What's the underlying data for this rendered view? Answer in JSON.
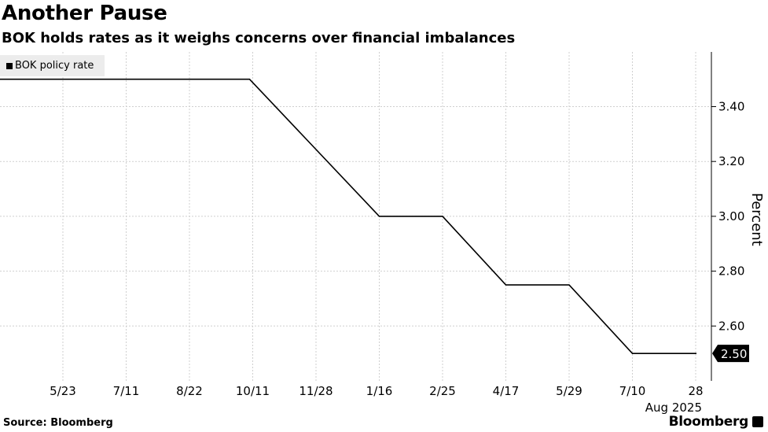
{
  "title": "Another Pause",
  "subtitle": "BOK holds rates as it weighs concerns over financial imbalances",
  "source": "Source: Bloomberg",
  "brand": "Bloomberg",
  "chart_data": {
    "type": "line",
    "legend": [
      "BOK policy rate"
    ],
    "ylabel": "Percent",
    "ylim": [
      2.4,
      3.6
    ],
    "yticks": [
      "2.60",
      "2.80",
      "3.00",
      "3.20",
      "3.40"
    ],
    "xticks": [
      "5/23",
      "7/11",
      "8/22",
      "10/11",
      "11/28",
      "1/16",
      "2/25",
      "4/17",
      "5/29",
      "7/10",
      "28"
    ],
    "x_sub_label": "Aug 2025",
    "last_value_label": "2.50",
    "series": [
      {
        "name": "BOK policy rate",
        "color": "#000000",
        "x": [
          0,
          2.95,
          5,
          6,
          7,
          8,
          9,
          11
        ],
        "values": [
          3.5,
          3.5,
          3.0,
          3.0,
          2.75,
          2.75,
          2.5,
          2.5
        ]
      }
    ]
  }
}
